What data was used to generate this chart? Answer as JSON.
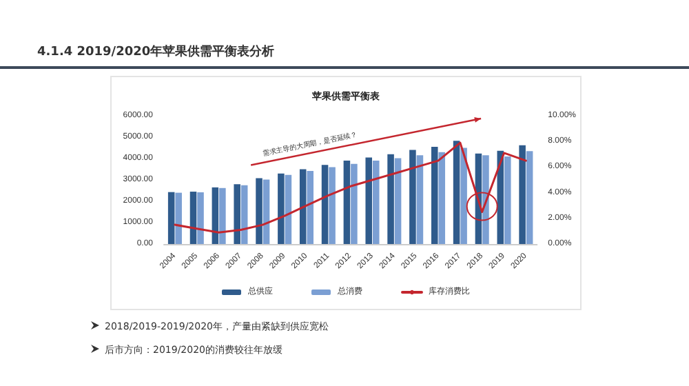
{
  "chart_data": {
    "type": "bar",
    "title": "苹果供需平衡表",
    "subtitle": "4.1.4 2019/2020年苹果供需平衡表分析",
    "categories": [
      "2004",
      "2005",
      "2006",
      "2007",
      "2008",
      "2009",
      "2010",
      "2011",
      "2012",
      "2013",
      "2014",
      "2015",
      "2016",
      "2017",
      "2018",
      "2019",
      "2020"
    ],
    "series": [
      {
        "name": "总供应",
        "color": "#2f5b8c",
        "values": [
          2430,
          2450,
          2650,
          2800,
          3080,
          3300,
          3500,
          3700,
          3900,
          4050,
          4200,
          4400,
          4550,
          4830,
          4230,
          4360,
          4620
        ]
      },
      {
        "name": "总消费",
        "color": "#7b9fd3",
        "values": [
          2400,
          2420,
          2620,
          2750,
          3020,
          3230,
          3420,
          3600,
          3750,
          3900,
          4020,
          4150,
          4300,
          4500,
          4150,
          4100,
          4350
        ]
      },
      {
        "name": "库存消费比",
        "type": "line",
        "axis": "y2",
        "color": "#c4262e",
        "marker": "none",
        "values": [
          1.5,
          1.2,
          0.9,
          1.1,
          1.5,
          2.2,
          3.0,
          3.8,
          4.5,
          5.0,
          5.5,
          6.0,
          6.5,
          7.9,
          2.5,
          7.1,
          6.5
        ]
      }
    ],
    "ylim": [
      0,
      6000
    ],
    "yticks": [
      {
        "value": 0,
        "label": "0.00"
      },
      {
        "value": 1000,
        "label": "1000.00"
      },
      {
        "value": 2000,
        "label": "2000.00"
      },
      {
        "value": 3000,
        "label": "3000.00"
      },
      {
        "value": 4000,
        "label": "4000.00"
      },
      {
        "value": 5000,
        "label": "5000.00"
      },
      {
        "value": 6000,
        "label": "6000.00"
      }
    ],
    "y2lim": [
      0,
      10
    ],
    "y2ticks": [
      {
        "value": 0,
        "label": "0.00%"
      },
      {
        "value": 2,
        "label": "2.00%"
      },
      {
        "value": 4,
        "label": "4.00%"
      },
      {
        "value": 6,
        "label": "6.00%"
      },
      {
        "value": 8,
        "label": "8.00%"
      },
      {
        "value": 10,
        "label": "10.00%"
      }
    ],
    "grid": false,
    "legend": "bottom",
    "annotations": [
      "需求主导的大周期，是否延续？",
      "2018/2019-2019/2020年，产量由紧缺到供应宽松",
      "后市方向：2019/2020的消费较往年放缓"
    ]
  }
}
